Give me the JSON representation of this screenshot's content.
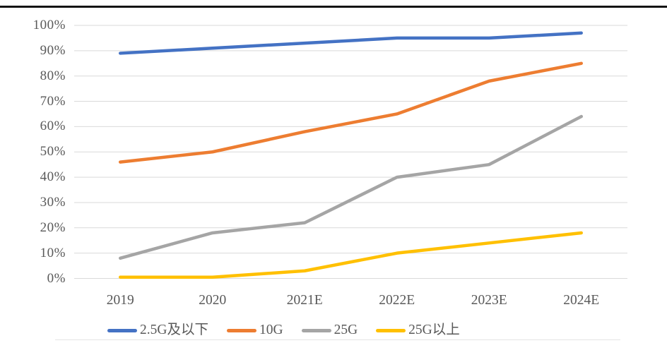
{
  "page": {
    "background_color": "#ffffff",
    "top_rule_color": "#141414"
  },
  "chart_data": {
    "type": "line",
    "title": "",
    "categories": [
      "2019",
      "2020",
      "2021E",
      "2022E",
      "2023E",
      "2024E"
    ],
    "series": [
      {
        "name": "2.5G及以下",
        "color": "#4472C4",
        "values": [
          89,
          91,
          93,
          95,
          95,
          97
        ]
      },
      {
        "name": "10G",
        "color": "#ED7D31",
        "values": [
          46,
          50,
          58,
          65,
          78,
          85
        ]
      },
      {
        "name": "25G",
        "color": "#A5A5A5",
        "values": [
          8,
          18,
          22,
          40,
          45,
          64
        ]
      },
      {
        "name": "25G以上",
        "color": "#FFC000",
        "values": [
          0.5,
          0.5,
          3,
          10,
          14,
          18
        ]
      }
    ],
    "xlabel": "",
    "ylabel": "",
    "ylim": [
      0,
      100
    ],
    "y_tick_values": [
      0,
      10,
      20,
      30,
      40,
      50,
      60,
      70,
      80,
      90,
      100
    ],
    "y_ticks": [
      "0%",
      "10%",
      "20%",
      "30%",
      "40%",
      "50%",
      "60%",
      "70%",
      "80%",
      "90%",
      "100%"
    ],
    "grid": "horizontal",
    "gridline_color": "#D9D9D9",
    "legend_position": "bottom"
  }
}
